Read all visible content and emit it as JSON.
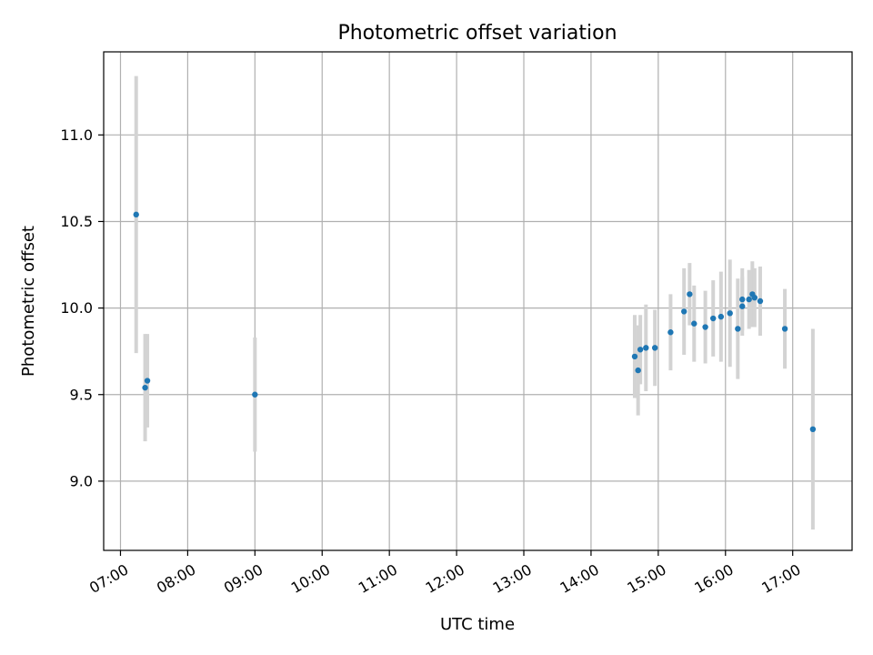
{
  "chart_data": {
    "type": "scatter",
    "title": "Photometric offset variation",
    "xlabel": "UTC time",
    "ylabel": "Photometric offset",
    "x_ticks": [
      "07:00",
      "08:00",
      "09:00",
      "10:00",
      "11:00",
      "12:00",
      "13:00",
      "14:00",
      "15:00",
      "16:00",
      "17:00"
    ],
    "y_ticks": [
      "9.0",
      "9.5",
      "10.0",
      "10.5",
      "11.0"
    ],
    "xlim": [
      "06:45",
      "17:53"
    ],
    "ylim": [
      8.6,
      11.48
    ],
    "grid": true,
    "colors": {
      "marker": "#1f77b4",
      "errorbar": "#d3d3d3",
      "grid": "#b0b0b0"
    },
    "series": [
      {
        "points": [
          {
            "x": "07:14",
            "y": 10.54,
            "err": 0.8
          },
          {
            "x": "07:22",
            "y": 9.54,
            "err": 0.31
          },
          {
            "x": "07:24",
            "y": 9.58,
            "err": 0.27
          },
          {
            "x": "09:00",
            "y": 9.5,
            "err": 0.33
          },
          {
            "x": "14:39",
            "y": 9.72,
            "err": 0.24
          },
          {
            "x": "14:42",
            "y": 9.64,
            "err": 0.26
          },
          {
            "x": "14:44",
            "y": 9.76,
            "err": 0.2
          },
          {
            "x": "14:49",
            "y": 9.77,
            "err": 0.25
          },
          {
            "x": "14:57",
            "y": 9.77,
            "err": 0.22
          },
          {
            "x": "15:11",
            "y": 9.86,
            "err": 0.22
          },
          {
            "x": "15:23",
            "y": 9.98,
            "err": 0.25
          },
          {
            "x": "15:28",
            "y": 10.08,
            "err": 0.18
          },
          {
            "x": "15:32",
            "y": 9.91,
            "err": 0.22
          },
          {
            "x": "15:42",
            "y": 9.89,
            "err": 0.21
          },
          {
            "x": "15:49",
            "y": 9.94,
            "err": 0.22
          },
          {
            "x": "15:56",
            "y": 9.95,
            "err": 0.26
          },
          {
            "x": "16:04",
            "y": 9.97,
            "err": 0.31
          },
          {
            "x": "16:11",
            "y": 9.88,
            "err": 0.29
          },
          {
            "x": "16:15",
            "y": 10.01,
            "err": 0.17
          },
          {
            "x": "16:15",
            "y": 10.05,
            "err": 0.18
          },
          {
            "x": "16:21",
            "y": 10.05,
            "err": 0.17
          },
          {
            "x": "16:24",
            "y": 10.08,
            "err": 0.19
          },
          {
            "x": "16:26",
            "y": 10.06,
            "err": 0.17
          },
          {
            "x": "16:31",
            "y": 10.04,
            "err": 0.2
          },
          {
            "x": "16:53",
            "y": 9.88,
            "err": 0.23
          },
          {
            "x": "17:18",
            "y": 9.3,
            "err": 0.58
          }
        ]
      }
    ]
  }
}
